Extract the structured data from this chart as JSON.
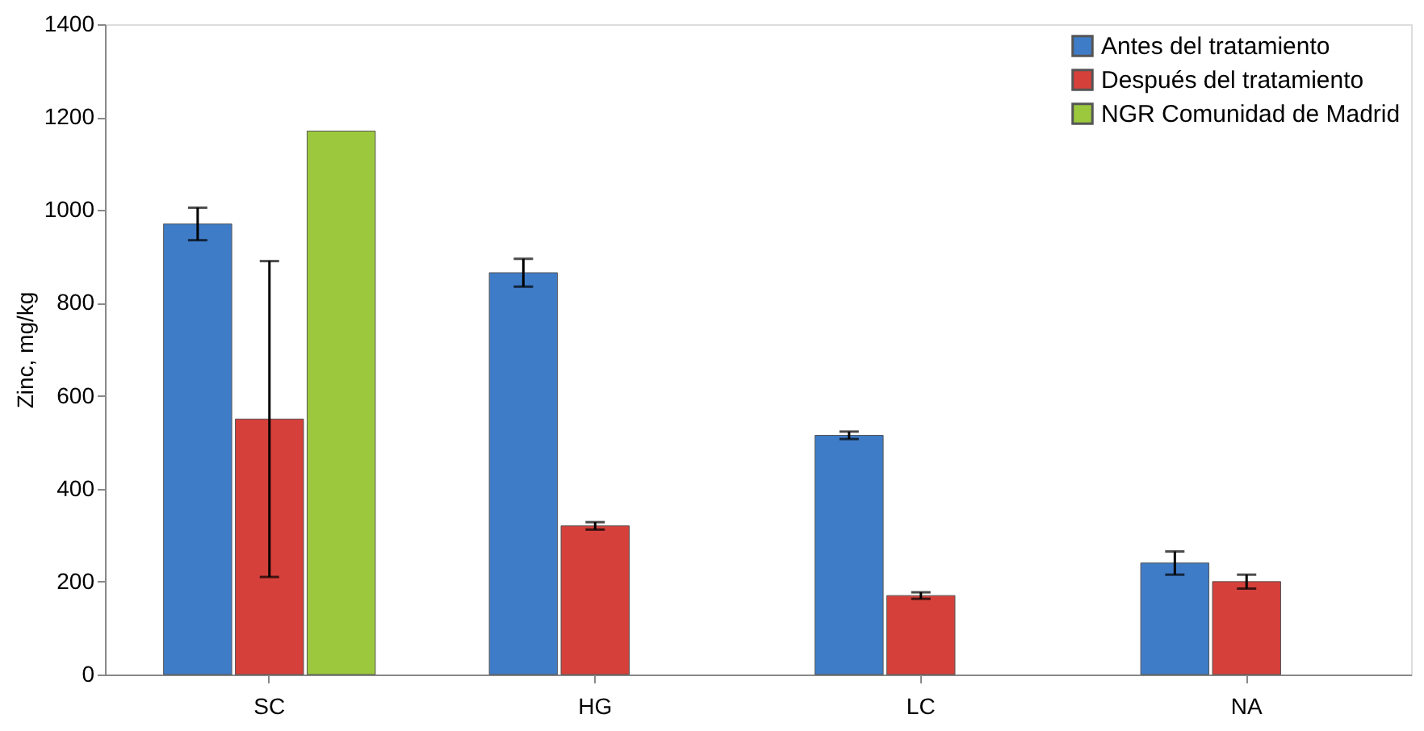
{
  "chart_data": {
    "type": "bar",
    "ylabel": "Zinc, mg/kg",
    "categories": [
      "SC",
      "HG",
      "LC",
      "NA"
    ],
    "series": [
      {
        "name": "Antes del tratamiento",
        "color": "#3f7cc8",
        "values": [
          970,
          865,
          515,
          240
        ],
        "errors": [
          35,
          30,
          8,
          25
        ]
      },
      {
        "name": "Después del tratamiento",
        "color": "#d6403b",
        "values": [
          550,
          320,
          170,
          200
        ],
        "errors": [
          340,
          8,
          7,
          15
        ]
      },
      {
        "name": "NGR Comunidad de Madrid",
        "color": "#9cc83d",
        "values": [
          1170,
          null,
          null,
          null
        ],
        "errors": [
          null,
          null,
          null,
          null
        ]
      }
    ],
    "ylim": [
      0,
      1400
    ],
    "yticks": [
      0,
      200,
      400,
      600,
      800,
      1000,
      1200,
      1400
    ],
    "grid": false,
    "legend": "top right"
  }
}
